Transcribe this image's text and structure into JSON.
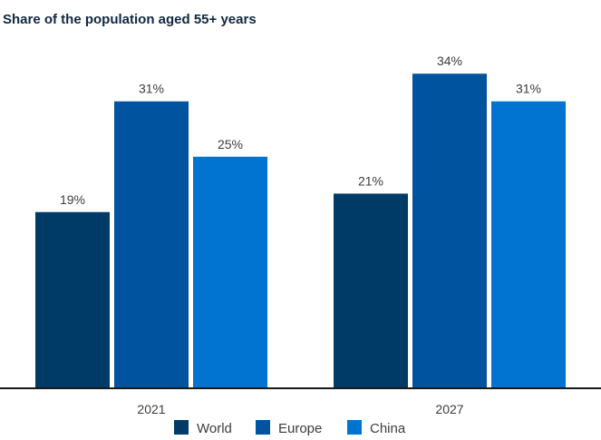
{
  "chart_data": {
    "type": "bar",
    "title": "Share of the population aged 55+ years",
    "xlabel": "",
    "ylabel": "",
    "categories": [
      "2021",
      "2027"
    ],
    "series": [
      {
        "name": "World",
        "values": [
          19,
          21
        ],
        "labels": [
          "19%",
          "21%"
        ],
        "color": "#003a66"
      },
      {
        "name": "Europe",
        "values": [
          31,
          34
        ],
        "labels": [
          "31%",
          "34%"
        ],
        "color": "#00539f"
      },
      {
        "name": "China",
        "values": [
          25,
          31
        ],
        "labels": [
          "25%",
          "31%"
        ],
        "color": "#0074d0"
      }
    ],
    "ylim": [
      0,
      38
    ],
    "grid": false,
    "legend_position": "bottom",
    "axis_color": "#1a1a1a"
  }
}
